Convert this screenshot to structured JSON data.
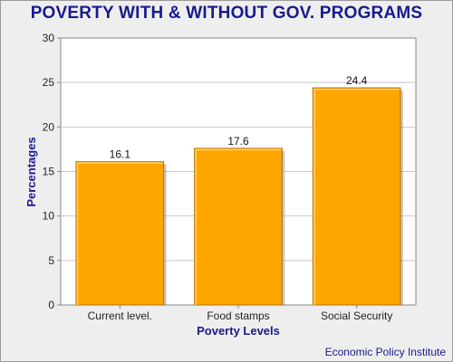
{
  "chart_data": {
    "type": "bar",
    "title": "POVERTY  WITH & WITHOUT GOV. PROGRAMS",
    "xlabel": "Poverty Levels",
    "ylabel": "Percentages",
    "categories": [
      "Current level.",
      "Food stamps",
      "Social Security"
    ],
    "values": [
      16.1,
      17.6,
      24.4
    ],
    "data_labels": [
      "16.1",
      "17.6",
      "24.4"
    ],
    "ylim": [
      0,
      30
    ],
    "yticks": [
      0,
      5,
      10,
      15,
      20,
      25,
      30
    ],
    "grid": true,
    "legend": "none",
    "source": "Economic Policy Institute",
    "colors": {
      "bar": "#ffa500",
      "bar_edge": "#b86e00",
      "bar_highlight": "#ffd870",
      "title": "#1a1a8c",
      "plot_bg": "#ffffff",
      "frame_bg": "#eeeeee",
      "grid": "#c8c8c8"
    }
  }
}
